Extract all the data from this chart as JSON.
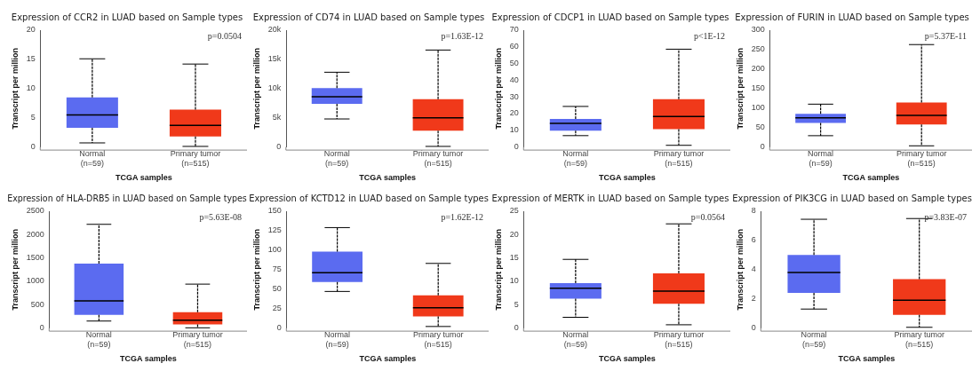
{
  "chart_data": [
    {
      "type": "box",
      "title": "Expression of CCR2 in LUAD based on Sample types",
      "xlabel": "TCGA samples",
      "ylabel": "Transcript per million",
      "categories": [
        "Normal\n(n=59)",
        "Primary tumor\n(n=515)"
      ],
      "colors": [
        "#5b6bf0",
        "#f0391a"
      ],
      "ylim": [
        0,
        20
      ],
      "yticks": [
        0,
        5,
        10,
        15,
        20
      ],
      "grid": false,
      "legend": false,
      "annotations": [
        "p=0.0504"
      ],
      "boxes": [
        {
          "low": 0.7,
          "q1": 3.3,
          "median": 5.5,
          "q3": 8.5,
          "high": 15.1
        },
        {
          "low": 0.1,
          "q1": 1.8,
          "median": 3.7,
          "q3": 6.4,
          "high": 14.2
        }
      ]
    },
    {
      "type": "box",
      "title": "Expression of CD74 in LUAD based on Sample types",
      "xlabel": "TCGA samples",
      "ylabel": "Transcript per million",
      "categories": [
        "Normal\n(n=59)",
        "Primary tumor\n(n=515)"
      ],
      "colors": [
        "#5b6bf0",
        "#f0391a"
      ],
      "ylim": [
        0,
        20000
      ],
      "yticks": [
        0,
        {
          "value": 5000,
          "label": "5k"
        },
        {
          "value": 10000,
          "label": "10k"
        },
        {
          "value": 15000,
          "label": "15k"
        },
        {
          "value": 20000,
          "label": "20k"
        }
      ],
      "grid": false,
      "legend": false,
      "annotations": [
        "p=1.63E-12"
      ],
      "boxes": [
        {
          "low": 4800,
          "q1": 7400,
          "median": 8600,
          "q3": 10100,
          "high": 12800
        },
        {
          "low": 100,
          "q1": 2800,
          "median": 5000,
          "q3": 8200,
          "high": 16600
        }
      ]
    },
    {
      "type": "box",
      "title": "Expression of CDCP1 in LUAD based on Sample types",
      "xlabel": "TCGA samples",
      "ylabel": "Transcript per million",
      "categories": [
        "Normal\n(n=59)",
        "Primary tumor\n(n=515)"
      ],
      "colors": [
        "#5b6bf0",
        "#f0391a"
      ],
      "ylim": [
        0,
        70
      ],
      "yticks": [
        0,
        10,
        20,
        30,
        40,
        50,
        60,
        70
      ],
      "grid": false,
      "legend": false,
      "annotations": [
        "p<1E-12"
      ],
      "boxes": [
        {
          "low": 6.8,
          "q1": 9.8,
          "median": 14.2,
          "q3": 16.8,
          "high": 24.3
        },
        {
          "low": 1,
          "q1": 10.7,
          "median": 18.3,
          "q3": 28.6,
          "high": 58.6
        }
      ]
    },
    {
      "type": "box",
      "title": "Expression of FURIN in LUAD based on Sample types",
      "xlabel": "TCGA samples",
      "ylabel": "Transcript per million",
      "categories": [
        "Normal\n(n=59)",
        "Primary tumor\n(n=515)"
      ],
      "colors": [
        "#5b6bf0",
        "#f0391a"
      ],
      "ylim": [
        0,
        300
      ],
      "yticks": [
        0,
        50,
        100,
        150,
        200,
        250,
        300
      ],
      "grid": false,
      "legend": false,
      "annotations": [
        "p=5.37E-11"
      ],
      "boxes": [
        {
          "low": 29,
          "q1": 62,
          "median": 75,
          "q3": 85,
          "high": 110
        },
        {
          "low": 3,
          "q1": 58,
          "median": 81,
          "q3": 114,
          "high": 263
        }
      ]
    },
    {
      "type": "box",
      "title": "Expression of HLA-DRB5 in LUAD based on Sample types",
      "xlabel": "TCGA samples",
      "ylabel": "Transcript per million",
      "categories": [
        "Normal\n(n=59)",
        "Primary tumor\n(n=515)"
      ],
      "colors": [
        "#5b6bf0",
        "#f0391a"
      ],
      "ylim": [
        0,
        2500
      ],
      "yticks": [
        0,
        500,
        1000,
        1500,
        2000,
        2500
      ],
      "grid": false,
      "legend": false,
      "annotations": [
        "p=5.63E-08"
      ],
      "boxes": [
        {
          "low": 150,
          "q1": 280,
          "median": 580,
          "q3": 1380,
          "high": 2220
        },
        {
          "low": 5,
          "q1": 80,
          "median": 170,
          "q3": 340,
          "high": 940
        }
      ]
    },
    {
      "type": "box",
      "title": "Expression of KCTD12 in LUAD based on Sample types",
      "xlabel": "TCGA samples",
      "ylabel": "Transcript per million",
      "categories": [
        "Normal\n(n=59)",
        "Primary tumor\n(n=515)"
      ],
      "colors": [
        "#5b6bf0",
        "#f0391a"
      ],
      "ylim": [
        0,
        150
      ],
      "yticks": [
        0,
        25,
        50,
        75,
        100,
        125,
        150
      ],
      "grid": false,
      "legend": false,
      "annotations": [
        "p=1.62E-12"
      ],
      "boxes": [
        {
          "low": 47,
          "q1": 59,
          "median": 71,
          "q3": 98,
          "high": 129
        },
        {
          "low": 2,
          "q1": 15,
          "median": 26,
          "q3": 42,
          "high": 83
        }
      ]
    },
    {
      "type": "box",
      "title": "Expression of MERTK in LUAD based on Sample types",
      "xlabel": "TCGA samples",
      "ylabel": "Transcript per million",
      "categories": [
        "Normal\n(n=59)",
        "Primary tumor\n(n=515)"
      ],
      "colors": [
        "#5b6bf0",
        "#f0391a"
      ],
      "ylim": [
        0,
        25
      ],
      "yticks": [
        0,
        5,
        10,
        15,
        20,
        25
      ],
      "grid": false,
      "legend": false,
      "annotations": [
        "p=0.0564"
      ],
      "boxes": [
        {
          "low": 2.3,
          "q1": 6.3,
          "median": 8.5,
          "q3": 9.6,
          "high": 14.7
        },
        {
          "low": 0.7,
          "q1": 5.2,
          "median": 7.9,
          "q3": 11.7,
          "high": 22.3
        }
      ]
    },
    {
      "type": "box",
      "title": "Expression of PIK3CG in LUAD based on Sample types",
      "xlabel": "TCGA samples",
      "ylabel": "Transcript per million",
      "categories": [
        "Normal\n(n=59)",
        "Primary tumor\n(n=515)"
      ],
      "colors": [
        "#5b6bf0",
        "#f0391a"
      ],
      "ylim": [
        0,
        8
      ],
      "yticks": [
        0,
        2,
        4,
        6,
        8
      ],
      "grid": false,
      "legend": false,
      "annotations": [
        "p=3.83E-07"
      ],
      "boxes": [
        {
          "low": 1.3,
          "q1": 2.4,
          "median": 3.8,
          "q3": 5.0,
          "high": 7.45
        },
        {
          "low": 0.05,
          "q1": 0.9,
          "median": 1.9,
          "q3": 3.35,
          "high": 7.5
        }
      ]
    }
  ]
}
